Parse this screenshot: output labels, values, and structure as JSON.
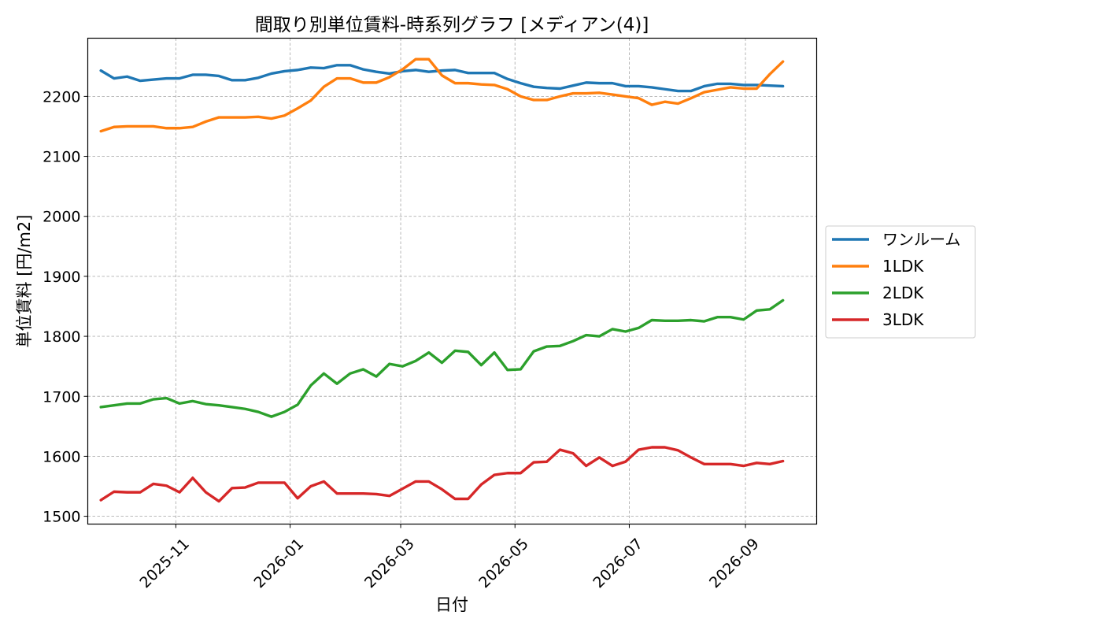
{
  "chart_data": {
    "type": "line",
    "title": "間取り別単位賃料-時系列グラフ [メディアン(4)]",
    "xlabel": "日付",
    "ylabel": "単位賃料 [円/m2]",
    "xlim": [
      "2025-09-15",
      "2026-10-09"
    ],
    "ylim": [
      1487,
      2297
    ],
    "x_ticks": [
      "2025-11-01",
      "2026-01-01",
      "2026-03-01",
      "2026-05-01",
      "2026-07-01",
      "2026-09-01"
    ],
    "x_tick_labels": [
      "2025-11",
      "2026-01",
      "2026-03",
      "2026-05",
      "2026-07",
      "2026-09"
    ],
    "y_ticks": [
      1500,
      1600,
      1700,
      1800,
      1900,
      2000,
      2100,
      2200
    ],
    "y_tick_labels": [
      "1500",
      "1600",
      "1700",
      "1800",
      "1900",
      "2000",
      "2100",
      "2200"
    ],
    "grid": true,
    "legend_placement": "outside-right",
    "x": [
      "2025-09-22",
      "2025-09-29",
      "2025-10-06",
      "2025-10-13",
      "2025-10-20",
      "2025-10-27",
      "2025-11-03",
      "2025-11-10",
      "2025-11-17",
      "2025-11-24",
      "2025-12-01",
      "2025-12-08",
      "2025-12-15",
      "2025-12-22",
      "2025-12-29",
      "2026-01-05",
      "2026-01-12",
      "2026-01-19",
      "2026-01-26",
      "2026-02-02",
      "2026-02-09",
      "2026-02-16",
      "2026-02-23",
      "2026-03-02",
      "2026-03-09",
      "2026-03-16",
      "2026-03-23",
      "2026-03-30",
      "2026-04-06",
      "2026-04-13",
      "2026-04-20",
      "2026-04-27",
      "2026-05-04",
      "2026-05-11",
      "2026-05-18",
      "2026-05-25",
      "2026-06-01",
      "2026-06-08",
      "2026-06-15",
      "2026-06-22",
      "2026-06-29",
      "2026-07-06",
      "2026-07-13",
      "2026-07-20",
      "2026-07-27",
      "2026-08-03",
      "2026-08-10",
      "2026-08-17",
      "2026-08-24",
      "2026-08-31",
      "2026-09-07",
      "2026-09-14",
      "2026-09-21"
    ],
    "series": [
      {
        "name": "ワンルーム",
        "color": "#1f77b4",
        "values": [
          2243,
          2230,
          2233,
          2226,
          2228,
          2230,
          2230,
          2236,
          2236,
          2234,
          2227,
          2227,
          2231,
          2238,
          2242,
          2244,
          2248,
          2247,
          2252,
          2252,
          2245,
          2241,
          2238,
          2242,
          2244,
          2241,
          2243,
          2244,
          2239,
          2239,
          2239,
          2229,
          2222,
          2216,
          2214,
          2213,
          2218,
          2223,
          2222,
          2222,
          2217,
          2217,
          2215,
          2212,
          2209,
          2209,
          2217,
          2221,
          2221,
          2219,
          2219,
          2218,
          2217
        ]
      },
      {
        "name": "1LDK",
        "color": "#ff7f0e",
        "values": [
          2142,
          2149,
          2150,
          2150,
          2150,
          2147,
          2147,
          2149,
          2158,
          2165,
          2165,
          2165,
          2166,
          2163,
          2168,
          2180,
          2193,
          2216,
          2230,
          2230,
          2223,
          2223,
          2232,
          2245,
          2262,
          2262,
          2235,
          2222,
          2222,
          2220,
          2219,
          2212,
          2200,
          2194,
          2194,
          2200,
          2205,
          2205,
          2206,
          2203,
          2200,
          2197,
          2186,
          2191,
          2188,
          2197,
          2207,
          2211,
          2215,
          2213,
          2213,
          2237,
          2258
        ]
      },
      {
        "name": "2LDK",
        "color": "#2ca02c",
        "values": [
          1682,
          1685,
          1688,
          1688,
          1695,
          1697,
          1688,
          1692,
          1687,
          1685,
          1682,
          1679,
          1674,
          1666,
          1674,
          1686,
          1718,
          1738,
          1721,
          1738,
          1745,
          1733,
          1754,
          1750,
          1759,
          1773,
          1756,
          1776,
          1774,
          1752,
          1773,
          1744,
          1745,
          1775,
          1783,
          1784,
          1792,
          1802,
          1800,
          1812,
          1808,
          1814,
          1827,
          1826,
          1826,
          1827,
          1825,
          1832,
          1832,
          1828,
          1843,
          1845,
          1860
        ]
      },
      {
        "name": "3LDK",
        "color": "#d62728",
        "values": [
          1527,
          1541,
          1540,
          1540,
          1554,
          1551,
          1540,
          1564,
          1540,
          1525,
          1547,
          1548,
          1556,
          1556,
          1556,
          1530,
          1550,
          1558,
          1538,
          1538,
          1538,
          1537,
          1534,
          1546,
          1558,
          1558,
          1545,
          1529,
          1529,
          1553,
          1569,
          1572,
          1572,
          1590,
          1591,
          1611,
          1605,
          1584,
          1598,
          1584,
          1591,
          1611,
          1615,
          1615,
          1610,
          1598,
          1587,
          1587,
          1587,
          1584,
          1589,
          1587,
          1592
        ]
      }
    ]
  }
}
